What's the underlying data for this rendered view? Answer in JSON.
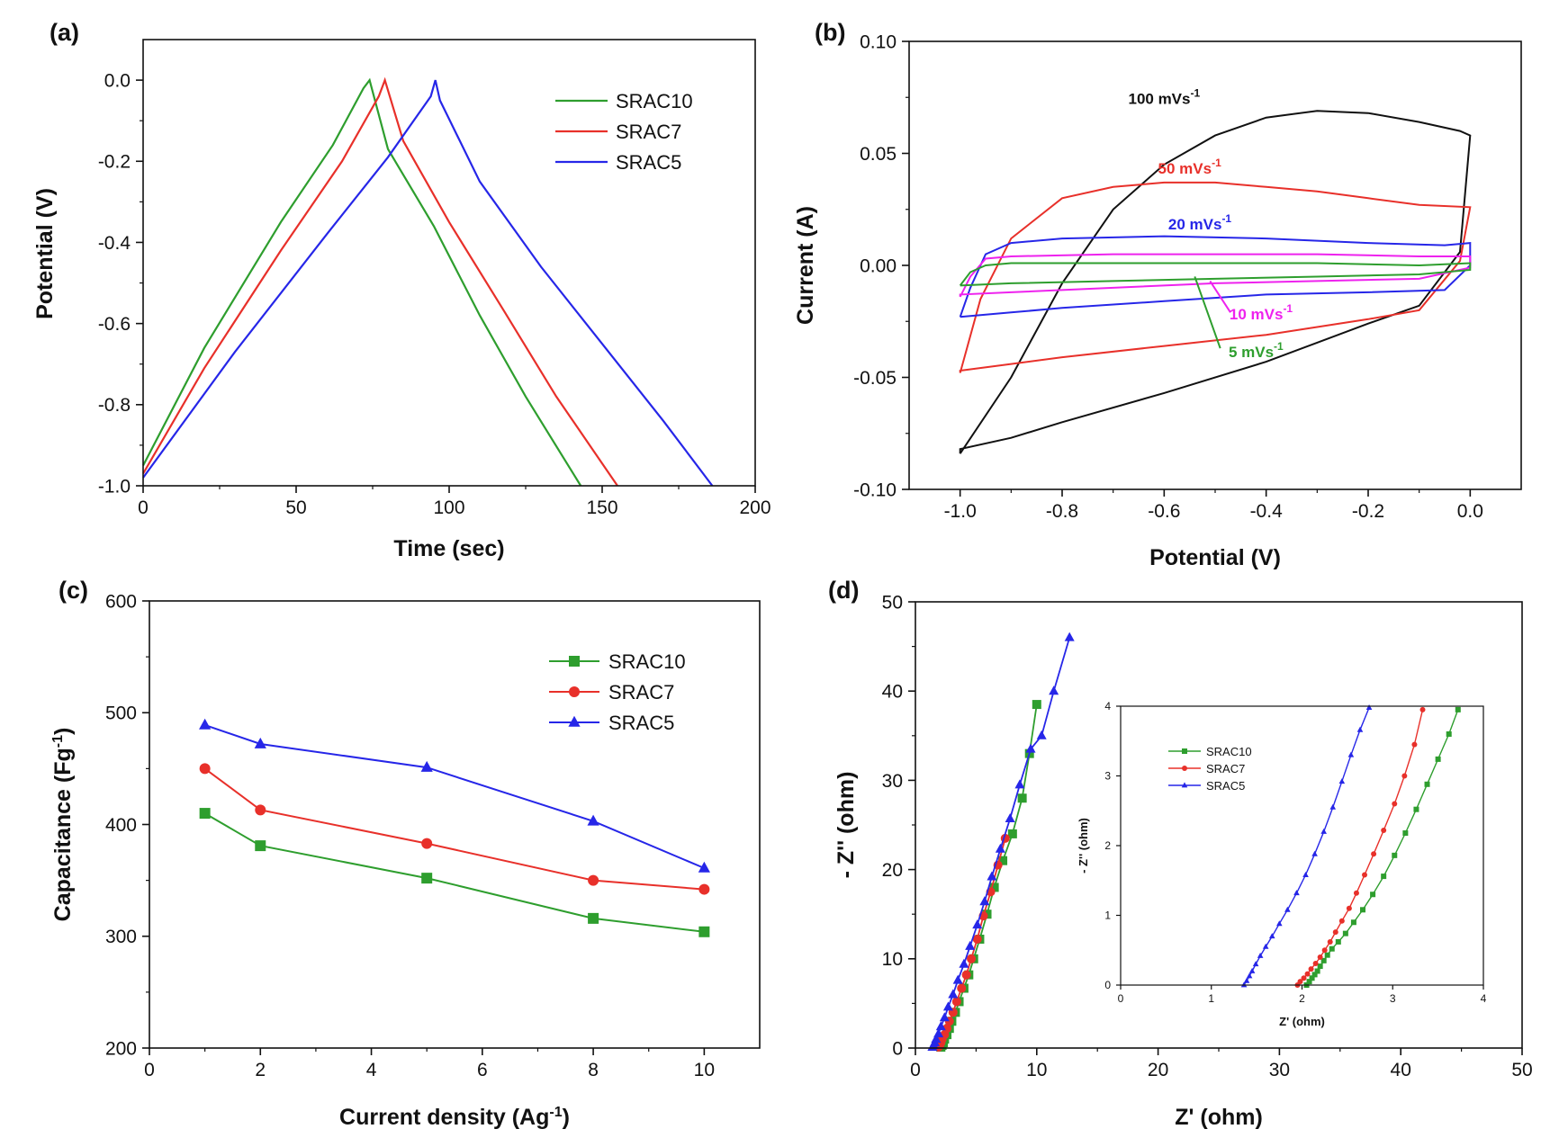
{
  "chart_data": [
    {
      "id": "a",
      "panel_label": "(a)",
      "type": "line",
      "title": "",
      "xlabel": "Time (sec)",
      "ylabel": "Potential (V)",
      "xlim": [
        0,
        200
      ],
      "ylim": [
        -1.0,
        0.1
      ],
      "xticks": [
        0,
        50,
        100,
        150,
        200
      ],
      "yticks": [
        0.0,
        -0.2,
        -0.4,
        -0.6,
        -0.8,
        -1.0
      ],
      "ytick_labels": [
        "0.0",
        "-0.2",
        "-0.4",
        "-0.6",
        "-0.8",
        "-1.0"
      ],
      "legend_position": "top-right",
      "series": [
        {
          "name": "SRAC10",
          "color": "#2e9e2e",
          "x": [
            0,
            20,
            45,
            62,
            72,
            74,
            80,
            95,
            110,
            125,
            143
          ],
          "y": [
            -0.95,
            -0.66,
            -0.35,
            -0.16,
            -0.02,
            0.0,
            -0.17,
            -0.36,
            -0.58,
            -0.78,
            -1.0
          ]
        },
        {
          "name": "SRAC7",
          "color": "#e8302a",
          "x": [
            0,
            20,
            45,
            65,
            77,
            79,
            85,
            100,
            118,
            135,
            155
          ],
          "y": [
            -0.97,
            -0.71,
            -0.42,
            -0.2,
            -0.04,
            0.0,
            -0.15,
            -0.35,
            -0.57,
            -0.78,
            -1.0
          ]
        },
        {
          "name": "SRAC5",
          "color": "#2626e8",
          "x": [
            0,
            30,
            60,
            80,
            94,
            95.5,
            97,
            110,
            130,
            150,
            170,
            186
          ],
          "y": [
            -0.98,
            -0.67,
            -0.38,
            -0.19,
            -0.04,
            0.0,
            -0.05,
            -0.25,
            -0.46,
            -0.65,
            -0.84,
            -1.0
          ]
        }
      ]
    },
    {
      "id": "b",
      "panel_label": "(b)",
      "type": "line",
      "title": "",
      "xlabel": "Potential (V)",
      "ylabel": "Current (A)",
      "xlim": [
        -1.1,
        0.1
      ],
      "ylim": [
        -0.1,
        0.1
      ],
      "xticks": [
        -1.0,
        -0.8,
        -0.6,
        -0.4,
        -0.2,
        0.0
      ],
      "xtick_labels": [
        "-1.0",
        "-0.8",
        "-0.6",
        "-0.4",
        "-0.2",
        "0.0"
      ],
      "yticks": [
        -0.1,
        -0.05,
        0.0,
        0.05,
        0.1
      ],
      "ytick_labels": [
        "-0.10",
        "-0.05",
        "0.00",
        "0.05",
        "0.10"
      ],
      "series": [
        {
          "name": "100 mVs-1",
          "color": "#111111",
          "x": [
            -1.0,
            -0.9,
            -0.8,
            -0.7,
            -0.6,
            -0.5,
            -0.4,
            -0.3,
            -0.2,
            -0.1,
            -0.02,
            0.0,
            -0.02,
            -0.1,
            -0.2,
            -0.4,
            -0.6,
            -0.8,
            -0.9,
            -1.0,
            -1.0
          ],
          "y": [
            -0.084,
            -0.05,
            -0.008,
            0.025,
            0.045,
            0.058,
            0.066,
            0.069,
            0.068,
            0.064,
            0.06,
            0.058,
            0.006,
            -0.018,
            -0.026,
            -0.043,
            -0.057,
            -0.07,
            -0.077,
            -0.082,
            -0.084
          ]
        },
        {
          "name": "50 mVs-1",
          "color": "#e8302a",
          "x": [
            -1.0,
            -0.96,
            -0.9,
            -0.8,
            -0.7,
            -0.6,
            -0.5,
            -0.4,
            -0.3,
            -0.2,
            -0.1,
            0.0,
            0.0,
            -0.02,
            -0.1,
            -0.2,
            -0.4,
            -0.6,
            -0.8,
            -0.9,
            -1.0,
            -1.0
          ],
          "y": [
            -0.048,
            -0.015,
            0.012,
            0.03,
            0.035,
            0.037,
            0.037,
            0.035,
            0.033,
            0.03,
            0.027,
            0.026,
            0.026,
            0.002,
            -0.02,
            -0.024,
            -0.031,
            -0.036,
            -0.041,
            -0.044,
            -0.047,
            -0.048
          ]
        },
        {
          "name": "20 mVs-1",
          "color": "#2626e8",
          "x": [
            -1.0,
            -0.98,
            -0.95,
            -0.9,
            -0.8,
            -0.6,
            -0.4,
            -0.2,
            -0.05,
            0.0,
            0.0,
            -0.05,
            -0.2,
            -0.4,
            -0.6,
            -0.8,
            -0.9,
            -1.0,
            -1.0
          ],
          "y": [
            -0.023,
            -0.01,
            0.005,
            0.01,
            0.012,
            0.013,
            0.012,
            0.01,
            0.009,
            0.01,
            0.0,
            -0.011,
            -0.012,
            -0.013,
            -0.016,
            -0.019,
            -0.021,
            -0.023,
            -0.023
          ]
        },
        {
          "name": "10 mVs-1",
          "color": "#ee22ee",
          "x": [
            -1.0,
            -0.98,
            -0.95,
            -0.9,
            -0.7,
            -0.5,
            -0.3,
            -0.1,
            0.0,
            0.0,
            -0.1,
            -0.3,
            -0.5,
            -0.7,
            -0.9,
            -1.0,
            -1.0
          ],
          "y": [
            -0.014,
            -0.005,
            0.003,
            0.004,
            0.005,
            0.005,
            0.005,
            0.004,
            0.004,
            -0.001,
            -0.006,
            -0.007,
            -0.008,
            -0.01,
            -0.012,
            -0.013,
            -0.014
          ]
        },
        {
          "name": "5 mVs-1",
          "color": "#2e9e2e",
          "x": [
            -1.0,
            -0.98,
            -0.95,
            -0.9,
            -0.7,
            -0.5,
            -0.3,
            -0.1,
            0.0,
            0.0,
            -0.1,
            -0.3,
            -0.5,
            -0.7,
            -0.9,
            -1.0,
            -1.0
          ],
          "y": [
            -0.009,
            -0.003,
            0.0,
            0.001,
            0.001,
            0.001,
            0.001,
            0.0,
            0.001,
            -0.002,
            -0.004,
            -0.005,
            -0.006,
            -0.007,
            -0.008,
            -0.009,
            -0.009
          ]
        }
      ],
      "annotations": [
        {
          "text": "100 mVs",
          "sup": "-1",
          "color": "#111111",
          "x": -0.6,
          "y": 0.072
        },
        {
          "text": "50 mVs",
          "sup": "-1",
          "color": "#e8302a",
          "x": -0.55,
          "y": 0.041
        },
        {
          "text": "20 mVs",
          "sup": "-1",
          "color": "#2626e8",
          "x": -0.53,
          "y": 0.016
        },
        {
          "text": "10 mVs",
          "sup": "-1",
          "color": "#ee22ee",
          "x": -0.41,
          "y": -0.024
        },
        {
          "text": "5 mVs",
          "sup": "-1",
          "color": "#2e9e2e",
          "x": -0.42,
          "y": -0.041
        }
      ]
    },
    {
      "id": "c",
      "panel_label": "(c)",
      "type": "line",
      "title": "",
      "xlabel": "Current density (Ag",
      "xlabel_sup": "-1",
      "xlabel_end": ")",
      "ylabel": "Capacitance (Fg",
      "ylabel_sup": "-1",
      "ylabel_end": ")",
      "xlim": [
        0,
        11
      ],
      "ylim": [
        200,
        600
      ],
      "xticks": [
        0,
        2,
        4,
        6,
        8,
        10
      ],
      "yticks": [
        200,
        300,
        400,
        500,
        600
      ],
      "legend_position": "top-right",
      "series": [
        {
          "name": "SRAC10",
          "color": "#2e9e2e",
          "marker": "square",
          "x": [
            1,
            2,
            5,
            8,
            10
          ],
          "y": [
            410,
            381,
            352,
            316,
            304
          ]
        },
        {
          "name": "SRAC7",
          "color": "#e8302a",
          "marker": "circle",
          "x": [
            1,
            2,
            5,
            8,
            10
          ],
          "y": [
            450,
            413,
            383,
            350,
            342
          ]
        },
        {
          "name": "SRAC5",
          "color": "#2626e8",
          "marker": "triangle",
          "x": [
            1,
            2,
            5,
            8,
            10
          ],
          "y": [
            489,
            472,
            451,
            403,
            361
          ]
        }
      ]
    },
    {
      "id": "d",
      "panel_label": "(d)",
      "type": "scatter",
      "title": "",
      "xlabel": "Z' (ohm)",
      "ylabel": "- Z'' (ohm)",
      "xlim": [
        0,
        50
      ],
      "ylim": [
        0,
        50
      ],
      "xticks": [
        0,
        10,
        20,
        30,
        40,
        50
      ],
      "yticks": [
        0,
        10,
        20,
        30,
        40,
        50
      ],
      "series": [
        {
          "name": "SRAC10",
          "color": "#2e9e2e",
          "marker": "square",
          "x": [
            2.1,
            2.2,
            2.3,
            2.4,
            2.6,
            2.8,
            3.0,
            3.3,
            3.6,
            4.0,
            4.4,
            4.8,
            5.3,
            5.9,
            6.5,
            7.2,
            8.0,
            8.8,
            9.4,
            10.0
          ],
          "y": [
            0.1,
            0.3,
            0.6,
            1.0,
            1.5,
            2.2,
            3.0,
            4.0,
            5.2,
            6.7,
            8.2,
            10.0,
            12.2,
            15.0,
            18.0,
            21.0,
            24.0,
            28.0,
            33.0,
            38.5
          ]
        },
        {
          "name": "SRAC7",
          "color": "#e8302a",
          "marker": "circle",
          "x": [
            1.9,
            2.0,
            2.1,
            2.2,
            2.4,
            2.6,
            2.8,
            3.1,
            3.4,
            3.8,
            4.2,
            4.6,
            5.1,
            5.6,
            6.2,
            6.8,
            7.4
          ],
          "y": [
            0.1,
            0.3,
            0.6,
            1.0,
            1.5,
            2.2,
            3.0,
            4.0,
            5.2,
            6.7,
            8.2,
            10.0,
            12.2,
            14.8,
            17.5,
            20.5,
            23.5
          ]
        },
        {
          "name": "SRAC5",
          "color": "#2626e8",
          "marker": "triangle",
          "x": [
            1.4,
            1.5,
            1.6,
            1.7,
            1.9,
            2.1,
            2.4,
            2.7,
            3.1,
            3.5,
            4.0,
            4.5,
            5.1,
            5.7,
            6.3,
            7.0,
            7.8,
            8.6,
            9.5,
            10.4,
            11.4,
            12.7
          ],
          "y": [
            0.1,
            0.3,
            0.6,
            1.0,
            1.6,
            2.4,
            3.4,
            4.6,
            6.0,
            7.6,
            9.4,
            11.4,
            13.8,
            16.4,
            19.2,
            22.3,
            25.7,
            29.5,
            33.5,
            35.0,
            40.0,
            46.0
          ]
        }
      ],
      "inset": {
        "xlabel": "Z' (ohm)",
        "ylabel": "- Z'' (ohm)",
        "xlim": [
          0,
          4
        ],
        "ylim": [
          0,
          4
        ],
        "xticks": [
          0,
          1,
          2,
          3,
          4
        ],
        "yticks": [
          0,
          1,
          2,
          3,
          4
        ],
        "legend_position": "top-left",
        "series": [
          {
            "name": "SRAC10",
            "color": "#2e9e2e",
            "marker": "square",
            "x": [
              2.05,
              2.08,
              2.11,
              2.14,
              2.17,
              2.2,
              2.24,
              2.28,
              2.33,
              2.4,
              2.48,
              2.57,
              2.67,
              2.78,
              2.9,
              3.02,
              3.14,
              3.26,
              3.38,
              3.5,
              3.62,
              3.72
            ],
            "y": [
              0.0,
              0.05,
              0.1,
              0.15,
              0.2,
              0.27,
              0.35,
              0.43,
              0.52,
              0.62,
              0.74,
              0.9,
              1.08,
              1.3,
              1.56,
              1.86,
              2.18,
              2.52,
              2.88,
              3.24,
              3.6,
              3.95
            ]
          },
          {
            "name": "SRAC7",
            "color": "#e8302a",
            "marker": "circle",
            "x": [
              1.95,
              1.98,
              2.02,
              2.06,
              2.1,
              2.15,
              2.2,
              2.25,
              2.31,
              2.37,
              2.44,
              2.52,
              2.6,
              2.69,
              2.79,
              2.9,
              3.02,
              3.13,
              3.24,
              3.33
            ],
            "y": [
              0.0,
              0.05,
              0.1,
              0.16,
              0.23,
              0.31,
              0.4,
              0.5,
              0.62,
              0.76,
              0.92,
              1.1,
              1.32,
              1.58,
              1.88,
              2.22,
              2.6,
              3.0,
              3.45,
              3.95
            ]
          },
          {
            "name": "SRAC5",
            "color": "#2626e8",
            "marker": "triangle",
            "x": [
              1.36,
              1.39,
              1.42,
              1.45,
              1.49,
              1.54,
              1.6,
              1.67,
              1.75,
              1.84,
              1.94,
              2.04,
              2.14,
              2.24,
              2.34,
              2.44,
              2.54,
              2.64,
              2.74
            ],
            "y": [
              0.0,
              0.06,
              0.13,
              0.2,
              0.3,
              0.42,
              0.55,
              0.7,
              0.88,
              1.08,
              1.32,
              1.58,
              1.88,
              2.2,
              2.55,
              2.92,
              3.3,
              3.66,
              3.98
            ]
          }
        ]
      }
    }
  ]
}
